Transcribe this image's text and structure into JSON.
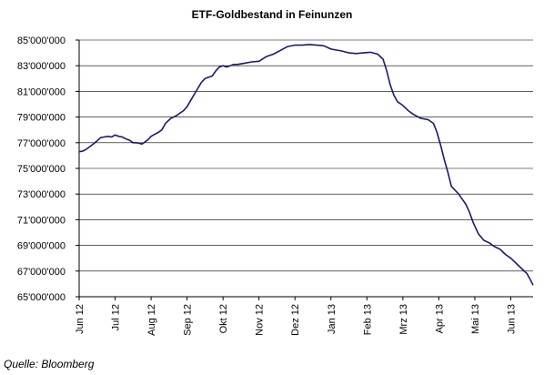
{
  "chart_data": {
    "type": "line",
    "title": "ETF-Goldbestand in Feinunzen",
    "xlabel": "",
    "ylabel": "",
    "source": "Quelle: Bloomberg",
    "ylim": [
      65000000,
      85000000
    ],
    "y_ticks": [
      "85'000'000",
      "83'000'000",
      "81'000'000",
      "79'000'000",
      "77'000'000",
      "75'000'000",
      "73'000'000",
      "71'000'000",
      "69'000'000",
      "67'000'000",
      "65'000'000"
    ],
    "x_ticks": [
      "Jun 12",
      "Jul 12",
      "Aug 12",
      "Sep 12",
      "Okt 12",
      "Nov 12",
      "Dez 12",
      "Jan 13",
      "Feb 13",
      "Mrz 13",
      "Apr 13",
      "Mai 13",
      "Jun 13"
    ],
    "grid": "horizontal",
    "line_color": "#1a1a6e",
    "series": [
      {
        "x": [
          0,
          0.1,
          0.2,
          0.35,
          0.5,
          0.6,
          0.7,
          0.8,
          0.9,
          1.0,
          1.1,
          1.2,
          1.3,
          1.4,
          1.5,
          1.6,
          1.75,
          1.9,
          2.0,
          2.1,
          2.2,
          2.3,
          2.4,
          2.55,
          2.7,
          2.8,
          2.9,
          3.0,
          3.1,
          3.25,
          3.4,
          3.5,
          3.6,
          3.7,
          3.8,
          3.9,
          4.0,
          4.1,
          4.2,
          4.3,
          4.4,
          4.6,
          4.8,
          5.0,
          5.2,
          5.4,
          5.6,
          5.8,
          6.0,
          6.2,
          6.4,
          6.6,
          6.8,
          7.0,
          7.1,
          7.3,
          7.5,
          7.7,
          7.9,
          8.1,
          8.3,
          8.45,
          8.55,
          8.65,
          8.75,
          8.85,
          9.0,
          9.15,
          9.3,
          9.5,
          9.7,
          9.85,
          9.95,
          10.05,
          10.15,
          10.25,
          10.35,
          10.45,
          10.55,
          10.65,
          10.75,
          10.85,
          10.95,
          11.1,
          11.25,
          11.4,
          11.55,
          11.7,
          11.85,
          12.0,
          12.15,
          12.3,
          12.45,
          12.55,
          12.62
        ],
        "y": [
          76300000,
          76350000,
          76500000,
          76800000,
          77150000,
          77400000,
          77450000,
          77500000,
          77450000,
          77600000,
          77500000,
          77450000,
          77300000,
          77200000,
          77000000,
          77000000,
          76900000,
          77200000,
          77500000,
          77650000,
          77800000,
          78000000,
          78500000,
          78900000,
          79100000,
          79300000,
          79500000,
          79800000,
          80300000,
          81000000,
          81700000,
          82000000,
          82100000,
          82200000,
          82600000,
          82900000,
          83000000,
          82900000,
          83000000,
          83100000,
          83100000,
          83200000,
          83300000,
          83350000,
          83700000,
          83900000,
          84200000,
          84500000,
          84600000,
          84600000,
          84650000,
          84600000,
          84550000,
          84300000,
          84250000,
          84150000,
          84000000,
          83950000,
          84000000,
          84050000,
          83900000,
          83500000,
          82600000,
          81500000,
          80700000,
          80200000,
          79900000,
          79500000,
          79200000,
          78900000,
          78800000,
          78500000,
          77800000,
          76800000,
          75700000,
          74700000,
          73600000,
          73300000,
          73000000,
          72600000,
          72200000,
          71600000,
          70800000,
          69900000,
          69400000,
          69200000,
          68900000,
          68700000,
          68300000,
          68000000,
          67600000,
          67200000,
          66800000,
          66300000,
          65900000
        ]
      }
    ]
  }
}
